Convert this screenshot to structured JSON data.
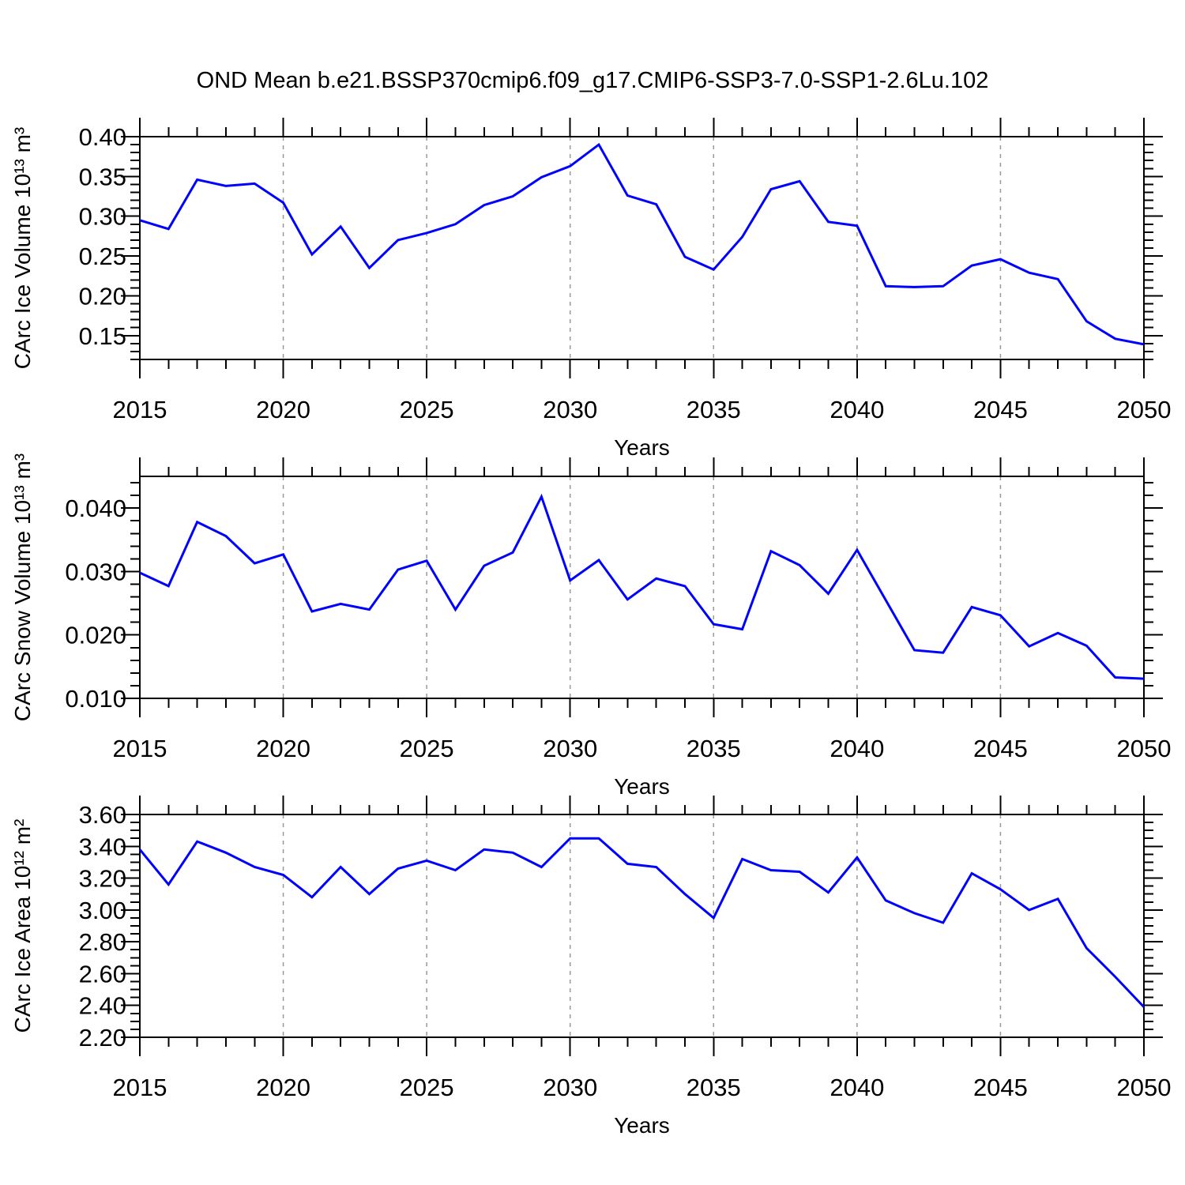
{
  "title": "OND Mean b.e21.BSSP370cmip6.f09_g17.CMIP6-SSP3-7.0-SSP1-2.6Lu.102",
  "colors": {
    "line": "#0000ff",
    "grid": "#999999",
    "frame": "#000000",
    "text": "#000000",
    "background": "#ffffff"
  },
  "x_axis": {
    "label": "Years",
    "start": 2015,
    "end": 2050,
    "major_step": 5,
    "minor_step": 1,
    "tick_labels": [
      "2015",
      "2020",
      "2025",
      "2030",
      "2035",
      "2040",
      "2045",
      "2050"
    ],
    "gridline_years": [
      2020,
      2025,
      2030,
      2035,
      2040,
      2045
    ]
  },
  "chart_data": [
    {
      "type": "line",
      "name": "carc-ice-volume",
      "ylabel": "CArc Ice Volume 10¹³ m³",
      "xlabel": "Years",
      "ylim": [
        0.12,
        0.4
      ],
      "ytick_minor": 0.01,
      "yticks": [
        {
          "v": 0.15,
          "t": "0.15"
        },
        {
          "v": 0.2,
          "t": "0.20"
        },
        {
          "v": 0.25,
          "t": "0.25"
        },
        {
          "v": 0.3,
          "t": "0.30"
        },
        {
          "v": 0.35,
          "t": "0.35"
        },
        {
          "v": 0.4,
          "t": "0.40"
        }
      ],
      "x": [
        2015,
        2016,
        2017,
        2018,
        2019,
        2020,
        2021,
        2022,
        2023,
        2024,
        2025,
        2026,
        2027,
        2028,
        2029,
        2030,
        2031,
        2032,
        2033,
        2034,
        2035,
        2036,
        2037,
        2038,
        2039,
        2040,
        2041,
        2042,
        2043,
        2044,
        2045,
        2046,
        2047,
        2048,
        2049,
        2050
      ],
      "values": [
        0.295,
        0.284,
        0.346,
        0.338,
        0.341,
        0.317,
        0.252,
        0.287,
        0.235,
        0.27,
        0.279,
        0.29,
        0.314,
        0.325,
        0.349,
        0.363,
        0.39,
        0.326,
        0.315,
        0.249,
        0.233,
        0.274,
        0.334,
        0.344,
        0.293,
        0.288,
        0.212,
        0.211,
        0.212,
        0.238,
        0.246,
        0.229,
        0.221,
        0.168,
        0.146,
        0.139
      ]
    },
    {
      "type": "line",
      "name": "carc-snow-volume",
      "ylabel": "CArc Snow Volume 10¹³ m³",
      "xlabel": "Years",
      "ylim": [
        0.01,
        0.045
      ],
      "ytick_minor": 0.002,
      "yticks": [
        {
          "v": 0.01,
          "t": "0.010"
        },
        {
          "v": 0.02,
          "t": "0.020"
        },
        {
          "v": 0.03,
          "t": "0.030"
        },
        {
          "v": 0.04,
          "t": "0.040"
        }
      ],
      "x": [
        2015,
        2016,
        2017,
        2018,
        2019,
        2020,
        2021,
        2022,
        2023,
        2024,
        2025,
        2026,
        2027,
        2028,
        2029,
        2030,
        2031,
        2032,
        2033,
        2034,
        2035,
        2036,
        2037,
        2038,
        2039,
        2040,
        2041,
        2042,
        2043,
        2044,
        2045,
        2046,
        2047,
        2048,
        2049,
        2050
      ],
      "values": [
        0.0298,
        0.0277,
        0.0378,
        0.0356,
        0.0313,
        0.0327,
        0.0237,
        0.0249,
        0.024,
        0.0303,
        0.0317,
        0.024,
        0.0309,
        0.033,
        0.0418,
        0.0286,
        0.0318,
        0.0256,
        0.0289,
        0.0277,
        0.0217,
        0.0209,
        0.0332,
        0.031,
        0.0265,
        0.0334,
        0.0255,
        0.0176,
        0.0172,
        0.0244,
        0.0231,
        0.0182,
        0.0203,
        0.0183,
        0.0133,
        0.0131
      ]
    },
    {
      "type": "line",
      "name": "carc-ice-area",
      "ylabel": "CArc Ice Area 10¹² m²",
      "xlabel": "Years",
      "ylim": [
        2.2,
        3.6
      ],
      "ytick_minor": 0.05,
      "yticks": [
        {
          "v": 2.2,
          "t": "2.20"
        },
        {
          "v": 2.4,
          "t": "2.40"
        },
        {
          "v": 2.6,
          "t": "2.60"
        },
        {
          "v": 2.8,
          "t": "2.80"
        },
        {
          "v": 3.0,
          "t": "3.00"
        },
        {
          "v": 3.2,
          "t": "3.20"
        },
        {
          "v": 3.4,
          "t": "3.40"
        },
        {
          "v": 3.6,
          "t": "3.60"
        }
      ],
      "x": [
        2015,
        2016,
        2017,
        2018,
        2019,
        2020,
        2021,
        2022,
        2023,
        2024,
        2025,
        2026,
        2027,
        2028,
        2029,
        2030,
        2031,
        2032,
        2033,
        2034,
        2035,
        2036,
        2037,
        2038,
        2039,
        2040,
        2041,
        2042,
        2043,
        2044,
        2045,
        2046,
        2047,
        2048,
        2049,
        2050
      ],
      "values": [
        3.38,
        3.16,
        3.43,
        3.36,
        3.27,
        3.22,
        3.08,
        3.27,
        3.1,
        3.26,
        3.31,
        3.25,
        3.38,
        3.36,
        3.27,
        3.45,
        3.45,
        3.29,
        3.27,
        3.1,
        2.95,
        3.32,
        3.25,
        3.24,
        3.11,
        3.33,
        3.06,
        2.98,
        2.92,
        3.23,
        3.13,
        3.0,
        3.07,
        2.76,
        2.58,
        2.39
      ]
    }
  ]
}
